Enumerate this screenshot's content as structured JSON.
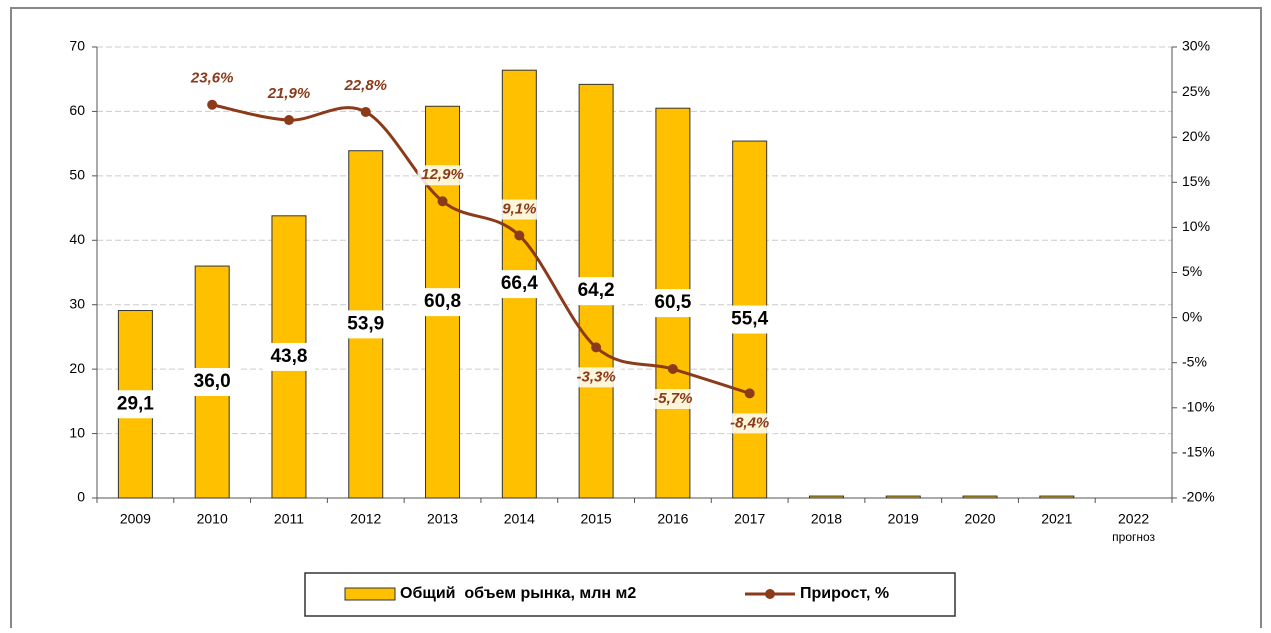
{
  "chart_data": {
    "type": "bar_line",
    "categories": [
      "2009",
      "2010",
      "2011",
      "2012",
      "2013",
      "2014",
      "2015",
      "2016",
      "2017",
      "2018",
      "2019",
      "2020",
      "2021",
      "2022"
    ],
    "annotation": "прогноз",
    "series": [
      {
        "name": "Общий  объем рынка, млн м2",
        "type": "bar",
        "color": "#ffc000",
        "values": [
          29.1,
          36.0,
          43.8,
          53.9,
          60.8,
          66.4,
          64.2,
          60.5,
          55.4,
          0.3,
          0.3,
          0.3,
          0.3,
          null
        ],
        "value_labels": [
          "29,1",
          "36,0",
          "43,8",
          "53,9",
          "60,8",
          "66,4",
          "64,2",
          "60,5",
          "55,4",
          null,
          null,
          null,
          null,
          null
        ]
      },
      {
        "name": "Прирост, %",
        "type": "line",
        "axis": "y2",
        "color": "#8b3a1a",
        "values": [
          null,
          23.6,
          21.9,
          22.8,
          12.9,
          9.1,
          -3.3,
          -5.7,
          -8.4,
          null,
          null,
          null,
          null,
          null
        ],
        "value_labels": [
          null,
          "23,6%",
          "21,9%",
          "22,8%",
          "12,9%",
          "9,1%",
          "-3,3%",
          "-5,7%",
          "-8,4%",
          null,
          null,
          null,
          null,
          null
        ]
      }
    ],
    "ylim": [
      0,
      70
    ],
    "yticks": [
      0,
      10,
      20,
      30,
      40,
      50,
      60,
      70
    ],
    "y2lim": [
      -20,
      30
    ],
    "y2ticks": [
      {
        "value": 30,
        "label": "30%"
      },
      {
        "value": 25,
        "label": "25%"
      },
      {
        "value": 20,
        "label": "20%"
      },
      {
        "value": 15,
        "label": "15%"
      },
      {
        "value": 10,
        "label": "10%"
      },
      {
        "value": 5,
        "label": "5%"
      },
      {
        "value": 0,
        "label": "0%"
      },
      {
        "value": -5,
        "label": "-5%"
      },
      {
        "value": -10,
        "label": "-10%"
      },
      {
        "value": -15,
        "label": "-15%"
      },
      {
        "value": -20,
        "label": "-20%"
      }
    ],
    "grid": true
  }
}
